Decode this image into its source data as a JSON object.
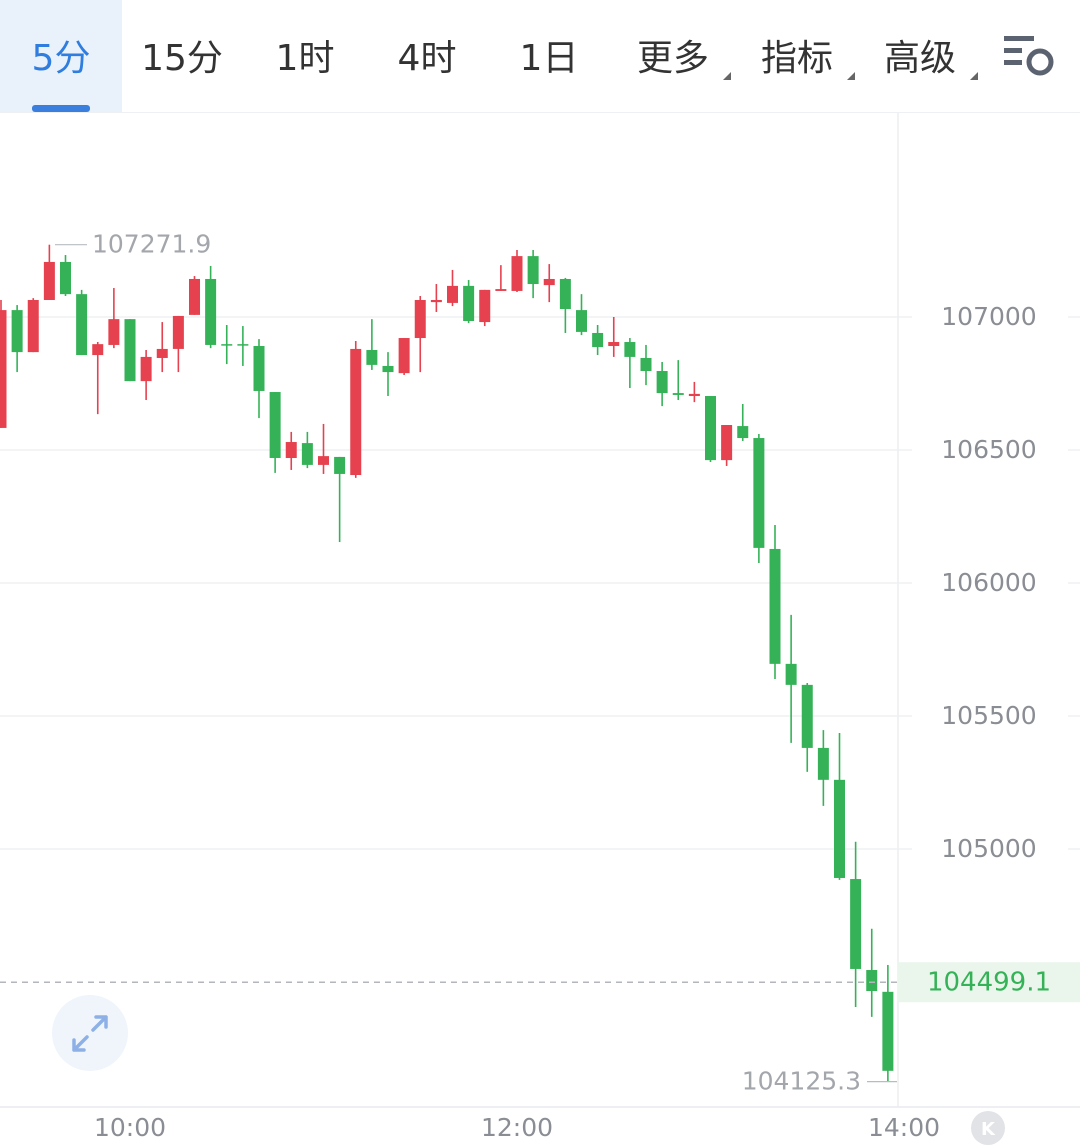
{
  "tabs": [
    {
      "label": "5分"
    },
    {
      "label": "15分"
    },
    {
      "label": "1时"
    },
    {
      "label": "4时"
    },
    {
      "label": "1日"
    },
    {
      "label": "更多",
      "menu": true
    },
    {
      "label": "指标",
      "menu": true
    },
    {
      "label": "高级",
      "menu": true
    }
  ],
  "active_tab": 0,
  "badge": "K",
  "chart_data": {
    "type": "candlestick",
    "categories": [
      null,
      null,
      null,
      null,
      null,
      null,
      null,
      null,
      "10:00",
      null,
      null,
      null,
      null,
      null,
      null,
      null,
      null,
      null,
      null,
      null,
      null,
      null,
      null,
      null,
      null,
      null,
      null,
      null,
      null,
      null,
      null,
      null,
      "12:00",
      null,
      null,
      null,
      null,
      null,
      null,
      null,
      null,
      null,
      null,
      null,
      null,
      null,
      null,
      null,
      null,
      null,
      null,
      null,
      null,
      null,
      null,
      null,
      "14:00"
    ],
    "open": [
      106583,
      107026,
      106868,
      107064,
      107207,
      107086,
      106857,
      106895,
      106992,
      106759,
      106846,
      106880,
      107008,
      107143,
      106898,
      106898,
      106891,
      106718,
      106470,
      106526,
      106444,
      106474,
      106406,
      106876,
      106816,
      106789,
      106921,
      107056,
      107053,
      107117,
      106981,
      107098,
      107098,
      107229,
      107120,
      107143,
      107026,
      106940,
      106891,
      106906,
      106846,
      106797,
      106714,
      106703,
      106703,
      106462,
      106590,
      106545,
      106128,
      105696,
      105617,
      105380,
      105260,
      104887,
      104545,
      104463,
      null
    ],
    "high": [
      107064,
      107045,
      107071,
      107271.9,
      107233,
      107102,
      106906,
      107109,
      106992,
      106876,
      106981,
      107004,
      107154,
      107192,
      106970,
      106966,
      106917,
      106718,
      106568,
      106568,
      106598,
      106474,
      106910,
      106992,
      106868,
      106921,
      107079,
      107124,
      107177,
      107139,
      107102,
      107195,
      107252,
      107252,
      107199,
      107147,
      107086,
      106970,
      107000,
      106921,
      106895,
      106831,
      106838,
      106756,
      106703,
      106594,
      106673,
      106560,
      106218,
      105880,
      105624,
      105447,
      105436,
      105027,
      104700,
      104564,
      null
    ],
    "low": [
      106583,
      106793,
      106868,
      107064,
      107079,
      106857,
      106635,
      106883,
      106759,
      106688,
      106793,
      106793,
      107008,
      106883,
      106823,
      106816,
      106620,
      106414,
      106425,
      106432,
      106410,
      106154,
      106395,
      106801,
      106703,
      106782,
      106793,
      107019,
      107041,
      106977,
      106966,
      107098,
      107094,
      107071,
      107056,
      106940,
      106932,
      106857,
      106850,
      106733,
      106744,
      106665,
      106688,
      106680,
      106455,
      106440,
      106534,
      106075,
      105639,
      105399,
      105290,
      105162,
      104884,
      104406,
      104369,
      104125.3,
      null
    ],
    "close": [
      107026,
      106868,
      107064,
      107207,
      107086,
      106857,
      106898,
      106992,
      106759,
      106850,
      106880,
      107004,
      107143,
      106895,
      106895,
      106895,
      106722,
      106470,
      106530,
      106444,
      106477,
      106410,
      106880,
      106820,
      106793,
      106921,
      107064,
      107064,
      107117,
      106985,
      107102,
      107105,
      107229,
      107124,
      107143,
      107030,
      106944,
      106887,
      106906,
      106850,
      106797,
      106714,
      106707,
      106711,
      106462,
      106594,
      106545,
      106132,
      105696,
      105617,
      105380,
      105260,
      104891,
      104549,
      104466,
      104166,
      null
    ],
    "up_color": "#e5414e",
    "down_color": "#35b257",
    "ylim": [
      104030,
      107767
    ],
    "yticks": [
      105000,
      105500,
      106000,
      106500,
      107000
    ],
    "grid": true,
    "high_marker": 107271.9,
    "low_marker": 104125.3,
    "last_price": 104499.1
  }
}
